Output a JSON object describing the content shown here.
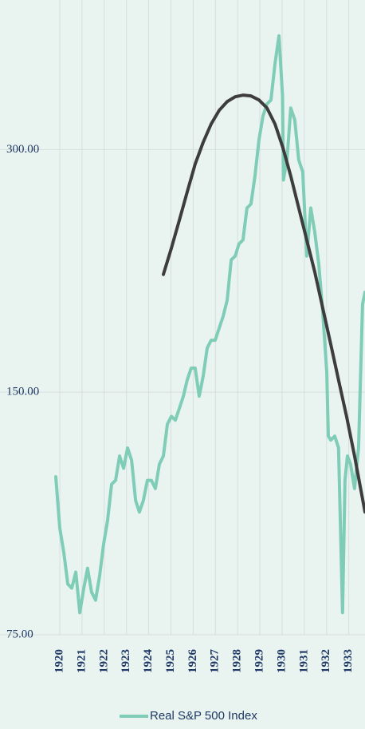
{
  "chart_data": {
    "type": "line",
    "log_scale_y": true,
    "grid": true,
    "xlim": [
      1917.31,
      1933.73
    ],
    "xticks": [
      1920,
      1921,
      1922,
      1923,
      1924,
      1925,
      1926,
      1927,
      1928,
      1929,
      1930,
      1931,
      1932,
      1933
    ],
    "ylim": [
      75,
      460
    ],
    "yticks": [
      {
        "value": 75,
        "label": "75.00"
      },
      {
        "value": 150,
        "label": "150.00"
      },
      {
        "value": 300,
        "label": "300.00"
      }
    ],
    "legend": "bottom",
    "series": [
      {
        "name": "Real S&P 500 Index",
        "color": "#7fcdb7",
        "x": [
          1919.82,
          1920.0,
          1920.18,
          1920.36,
          1920.54,
          1920.72,
          1920.9,
          1921.08,
          1921.25,
          1921.43,
          1921.61,
          1921.79,
          1921.97,
          1922.15,
          1922.33,
          1922.51,
          1922.69,
          1922.87,
          1923.05,
          1923.23,
          1923.41,
          1923.58,
          1923.76,
          1923.94,
          1924.12,
          1924.3,
          1924.48,
          1924.66,
          1924.84,
          1925.02,
          1925.2,
          1925.38,
          1925.56,
          1925.73,
          1925.91,
          1926.09,
          1926.27,
          1926.45,
          1926.63,
          1926.81,
          1926.99,
          1927.17,
          1927.35,
          1927.53,
          1927.71,
          1927.89,
          1928.06,
          1928.24,
          1928.42,
          1928.6,
          1928.78,
          1928.96,
          1929.14,
          1929.32,
          1929.5,
          1929.68,
          1929.86,
          1930.02,
          1930.06,
          1930.22,
          1930.39,
          1930.57,
          1930.75,
          1930.93,
          1931.11,
          1931.29,
          1931.47,
          1931.65,
          1931.83,
          1932.01,
          1932.08,
          1932.19,
          1932.37,
          1932.54,
          1932.72,
          1932.83,
          1932.94,
          1933.08,
          1933.26,
          1933.44,
          1933.62,
          1933.73
        ],
        "values": [
          117.8,
          101.7,
          94.9,
          86.7,
          85.7,
          89.7,
          79.9,
          85.7,
          90.7,
          84.7,
          82.8,
          88.7,
          97.1,
          104.0,
          115.3,
          116.6,
          125.0,
          120.7,
          127.9,
          123.5,
          110.1,
          106.5,
          110.1,
          116.6,
          116.6,
          113.9,
          122.1,
          125.0,
          136.9,
          140.0,
          138.5,
          143.3,
          148.3,
          155.3,
          160.7,
          160.7,
          148.3,
          157.0,
          170.1,
          174.0,
          174.0,
          180.1,
          186.4,
          195.1,
          218.9,
          221.3,
          229.1,
          231.7,
          253.9,
          256.8,
          278.2,
          308.4,
          330.2,
          341.8,
          345.7,
          383.2,
          415.2,
          349.7,
          275.1,
          291.2,
          337.9,
          326.5,
          291.2,
          281.4,
          221.3,
          253.9,
          237.0,
          216.3,
          188.5,
          158.9,
          132.3,
          130.8,
          132.3,
          127.9,
          79.9,
          116.6,
          125.0,
          122.1,
          113.9,
          127.9,
          192.8,
          199.6
        ]
      },
      {
        "color": "#3d3d3d",
        "x": [
          1924.66,
          1925.02,
          1925.38,
          1925.73,
          1926.09,
          1926.45,
          1926.81,
          1927.17,
          1927.53,
          1927.89,
          1928.24,
          1928.6,
          1928.96,
          1929.32,
          1929.68,
          1930.04,
          1930.39,
          1930.75,
          1931.11,
          1931.47,
          1931.83,
          1932.19,
          1932.54,
          1932.9,
          1933.26,
          1933.73
        ],
        "values": [
          210.0,
          226.4,
          245.3,
          265.7,
          287.9,
          306.3,
          322.8,
          335.6,
          344.1,
          348.9,
          350.5,
          349.7,
          345.7,
          337.9,
          322.8,
          301.4,
          278.2,
          253.9,
          231.7,
          211.5,
          190.7,
          172.0,
          155.3,
          140.0,
          125.0,
          106.5
        ]
      }
    ]
  }
}
